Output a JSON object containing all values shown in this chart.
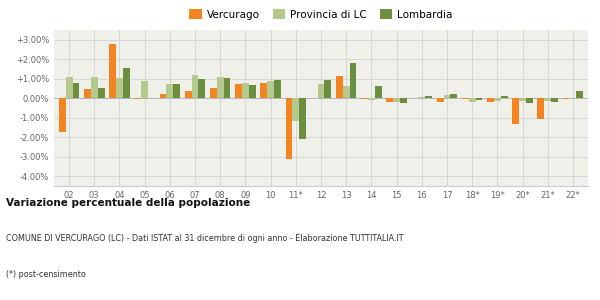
{
  "years": [
    "02",
    "03",
    "04",
    "05",
    "06",
    "07",
    "08",
    "09",
    "10",
    "11*",
    "12",
    "13",
    "14",
    "15",
    "16",
    "17",
    "18*",
    "19*",
    "20*",
    "21*",
    "22*"
  ],
  "vercurago": [
    -1.75,
    0.45,
    2.8,
    -0.05,
    0.2,
    0.35,
    0.55,
    0.75,
    0.8,
    -3.1,
    0.0,
    1.15,
    -0.02,
    -0.2,
    0.0,
    -0.2,
    -0.05,
    -0.2,
    -1.3,
    -1.05,
    -0.02
  ],
  "provincia_lc": [
    1.1,
    1.1,
    1.05,
    0.9,
    0.75,
    1.2,
    1.1,
    0.8,
    0.9,
    -1.15,
    0.75,
    0.65,
    -0.1,
    -0.2,
    0.05,
    0.15,
    -0.2,
    -0.15,
    -0.15,
    -0.15,
    0.0
  ],
  "lombardia": [
    0.8,
    0.55,
    1.55,
    0.0,
    0.75,
    1.0,
    1.05,
    0.7,
    0.95,
    -2.1,
    0.95,
    1.8,
    0.65,
    -0.25,
    0.1,
    0.2,
    -0.1,
    0.1,
    -0.25,
    -0.2,
    0.35
  ],
  "color_vercurago": "#f28522",
  "color_provincia": "#b5c98e",
  "color_lombardia": "#6b8f3e",
  "title_bold": "Variazione percentuale della popolazione",
  "subtitle": "COMUNE DI VERCURAGO (LC) - Dati ISTAT al 31 dicembre di ogni anno - Elaborazione TUTTITALIA.IT",
  "footnote": "(*) post-censimento",
  "ylim": [
    -4.5,
    3.5
  ],
  "ytick_vals": [
    -4.0,
    -3.0,
    -2.0,
    -1.0,
    0.0,
    1.0,
    2.0,
    3.0
  ],
  "ytick_labels": [
    "-4.00%",
    "-3.00%",
    "-2.00%",
    "-1.00%",
    "0.00%",
    "+1.00%",
    "+2.00%",
    "+3.00%"
  ],
  "bg_color": "#f0f0eb",
  "bar_width": 0.27,
  "legend_labels": [
    "Vercurago",
    "Provincia di LC",
    "Lombardia"
  ]
}
